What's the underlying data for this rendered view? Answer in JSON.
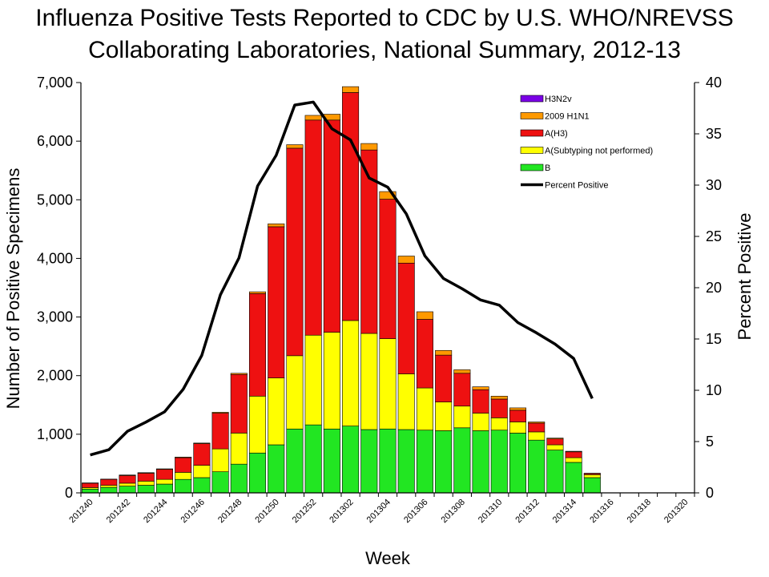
{
  "chart_data": {
    "type": "bar",
    "stacked": true,
    "title_lines": [
      "Influenza Positive Tests Reported to CDC by U.S. WHO/NREVSS",
      "Collaborating Laboratories, National Summary, 2012-13"
    ],
    "xlabel": "Week",
    "ylabel_left": "Number of Positive Specimens",
    "ylabel_right": "Percent Positive",
    "ylim_left": [
      0,
      7000
    ],
    "ylim_right": [
      0,
      40
    ],
    "yticks_left": [
      "0",
      "1,000",
      "2,000",
      "3,000",
      "4,000",
      "5,000",
      "6,000",
      "7,000"
    ],
    "yticks_right": [
      "0",
      "5",
      "10",
      "15",
      "20",
      "25",
      "30",
      "35",
      "40"
    ],
    "categories": [
      "201240",
      "201241",
      "201242",
      "201243",
      "201244",
      "201245",
      "201246",
      "201247",
      "201248",
      "201249",
      "201250",
      "201251",
      "201252",
      "201301",
      "201302",
      "201303",
      "201304",
      "201305",
      "201306",
      "201307",
      "201308",
      "201309",
      "201310",
      "201311",
      "201312",
      "201313",
      "201314",
      "201315",
      "201316",
      "201317",
      "201318",
      "201319",
      "201320"
    ],
    "x_tick_labels": [
      "201240",
      "201242",
      "201244",
      "201246",
      "201248",
      "201250",
      "201252",
      "201302",
      "201304",
      "201306",
      "201308",
      "201310",
      "201312",
      "201314",
      "201316",
      "201318",
      "201320"
    ],
    "series": [
      {
        "name": "B",
        "color": "#22e622",
        "values": [
          65,
          95,
          115,
          130,
          150,
          230,
          260,
          360,
          490,
          680,
          820,
          1090,
          1160,
          1090,
          1140,
          1080,
          1090,
          1080,
          1070,
          1060,
          1110,
          1060,
          1070,
          1020,
          900,
          730,
          520,
          260,
          0,
          0,
          0,
          0,
          0
        ]
      },
      {
        "name": "A(Subtyping not performed)",
        "color": "#ffff00",
        "values": [
          25,
          35,
          50,
          70,
          80,
          120,
          210,
          390,
          530,
          970,
          1140,
          1250,
          1530,
          1650,
          1800,
          1640,
          1540,
          950,
          720,
          490,
          370,
          300,
          210,
          190,
          140,
          90,
          80,
          50,
          0,
          0,
          0,
          0,
          0
        ]
      },
      {
        "name": "A(H3)",
        "color": "#ee1111",
        "values": [
          75,
          100,
          130,
          135,
          170,
          250,
          370,
          610,
          1000,
          1750,
          2580,
          3540,
          3670,
          3620,
          3890,
          3130,
          2380,
          1890,
          1170,
          800,
          560,
          400,
          320,
          200,
          150,
          100,
          100,
          20,
          0,
          0,
          0,
          0,
          0
        ]
      },
      {
        "name": "2009 H1N1",
        "color": "#ff9900",
        "values": [
          5,
          5,
          10,
          10,
          10,
          10,
          10,
          15,
          20,
          30,
          50,
          60,
          80,
          100,
          100,
          110,
          130,
          120,
          130,
          80,
          60,
          50,
          50,
          40,
          20,
          15,
          10,
          5,
          0,
          0,
          0,
          0,
          0
        ]
      },
      {
        "name": "H3N2v",
        "color": "#7a00e6",
        "values": [
          0,
          0,
          0,
          0,
          0,
          0,
          0,
          0,
          0,
          0,
          0,
          0,
          0,
          0,
          0,
          0,
          0,
          0,
          0,
          0,
          0,
          0,
          0,
          0,
          0,
          0,
          0,
          0,
          0,
          0,
          0,
          0,
          0
        ]
      }
    ],
    "line": {
      "name": "Percent Positive",
      "color": "#000000",
      "values": [
        3.7,
        4.2,
        6.0,
        6.9,
        7.9,
        10.1,
        13.4,
        19.3,
        22.9,
        29.9,
        32.9,
        37.8,
        38.1,
        35.5,
        34.4,
        30.7,
        29.8,
        27.2,
        23.1,
        20.9,
        19.9,
        18.8,
        18.3,
        16.6,
        15.6,
        14.5,
        13.1,
        9.2,
        null,
        null,
        null,
        null,
        null
      ]
    },
    "legend": {
      "placement": "top-right inside plot",
      "entries": [
        {
          "label": "H3N2v",
          "color": "#7a00e6",
          "kind": "box"
        },
        {
          "label": "2009 H1N1",
          "color": "#ff9900",
          "kind": "box"
        },
        {
          "label": "A(H3)",
          "color": "#ee1111",
          "kind": "box"
        },
        {
          "label": "A(Subtyping not performed)",
          "color": "#ffff00",
          "kind": "box"
        },
        {
          "label": "B",
          "color": "#22e622",
          "kind": "box"
        },
        {
          "label": "Percent Positive",
          "color": "#000000",
          "kind": "line"
        }
      ]
    }
  }
}
